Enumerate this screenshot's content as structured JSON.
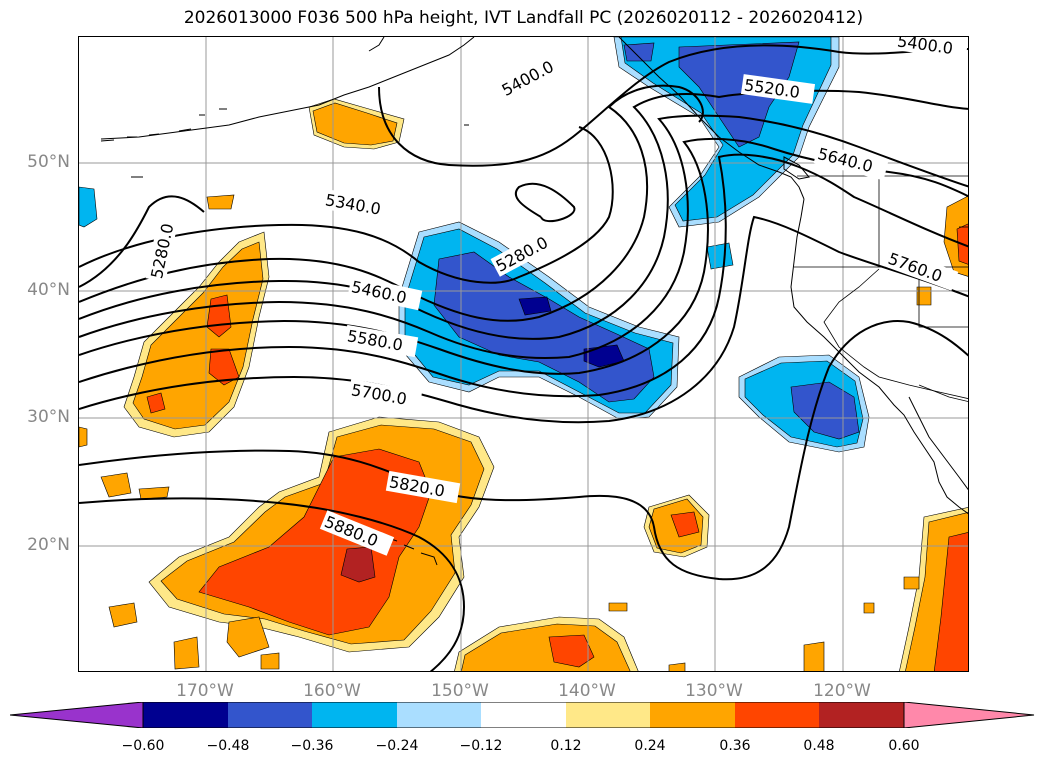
{
  "title": "2026013000 F036 500 hPa height, IVT Landfall PC (2026020112 - 2026020412)",
  "lat_labels": [
    "50°N",
    "40°N",
    "30°N",
    "20°N"
  ],
  "lon_labels": [
    "170°W",
    "160°W",
    "150°W",
    "140°W",
    "130°W",
    "120°W"
  ],
  "contour_labels": [
    "5400.0",
    "5520.0",
    "5640.0",
    "5760.0",
    "5340.0",
    "5280.0",
    "5280.0",
    "5460.0",
    "5580.0",
    "5700.0",
    "5820.0",
    "5880.0",
    "5400.0"
  ],
  "colorbar": {
    "ticks": [
      "−0.60",
      "−0.48",
      "−0.36",
      "−0.24",
      "−0.12",
      "0.12",
      "0.24",
      "0.36",
      "0.48",
      "0.60"
    ],
    "colors": [
      "#9933cc",
      "#000090",
      "#3355cc",
      "#00b5f0",
      "#aadeff",
      "#ffffff",
      "#ffe888",
      "#ffa500",
      "#ff4500",
      "#b22222",
      "#ff88aa"
    ]
  },
  "fill_colors": {
    "neg_light": "#aadeff",
    "neg_mid": "#00b5f0",
    "neg_strong": "#3355cc",
    "neg_max": "#000090",
    "pos_light": "#ffe888",
    "pos_mid": "#ffa500",
    "pos_strong": "#ff4500",
    "pos_max": "#b22222"
  }
}
